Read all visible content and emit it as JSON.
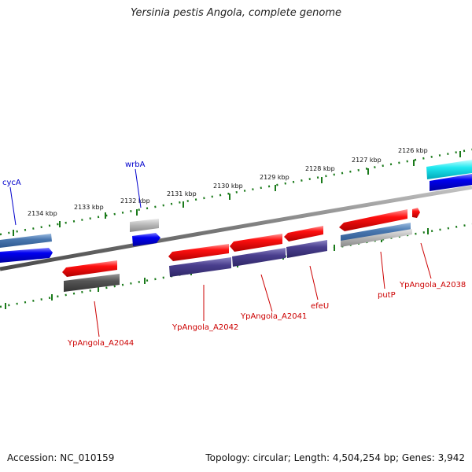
{
  "title": "Yersinia pestis Angola, complete genome",
  "footer": {
    "accession": "Accession: NC_010159",
    "summary": "Topology: circular; Length: 4,504,254 bp; Genes: 3,942"
  },
  "colors": {
    "backbone": "#8a8a8a",
    "tick": "#1a7a1a",
    "label_forward": "#0000cc",
    "label_reverse": "#cc0000"
  },
  "ticks": [
    "2134 kbp",
    "2133 kbp",
    "2132 kbp",
    "2131 kbp",
    "2130 kbp",
    "2129 kbp",
    "2128 kbp",
    "2127 kbp",
    "2126 kbp"
  ],
  "gene_labels": [
    {
      "id": "cycA",
      "text": "cycA",
      "strand": "forward"
    },
    {
      "id": "wrbA",
      "text": "wrbA",
      "strand": "forward"
    },
    {
      "id": "a2044",
      "text": "YpAngola_A2044",
      "strand": "reverse"
    },
    {
      "id": "a2042",
      "text": "YpAngola_A2042",
      "strand": "reverse"
    },
    {
      "id": "a2041",
      "text": "YpAngola_A2041",
      "strand": "reverse"
    },
    {
      "id": "efeU",
      "text": "efeU",
      "strand": "reverse"
    },
    {
      "id": "putP",
      "text": "putP",
      "strand": "reverse"
    },
    {
      "id": "a2038",
      "text": "YpAngola_A2038",
      "strand": "reverse"
    }
  ]
}
